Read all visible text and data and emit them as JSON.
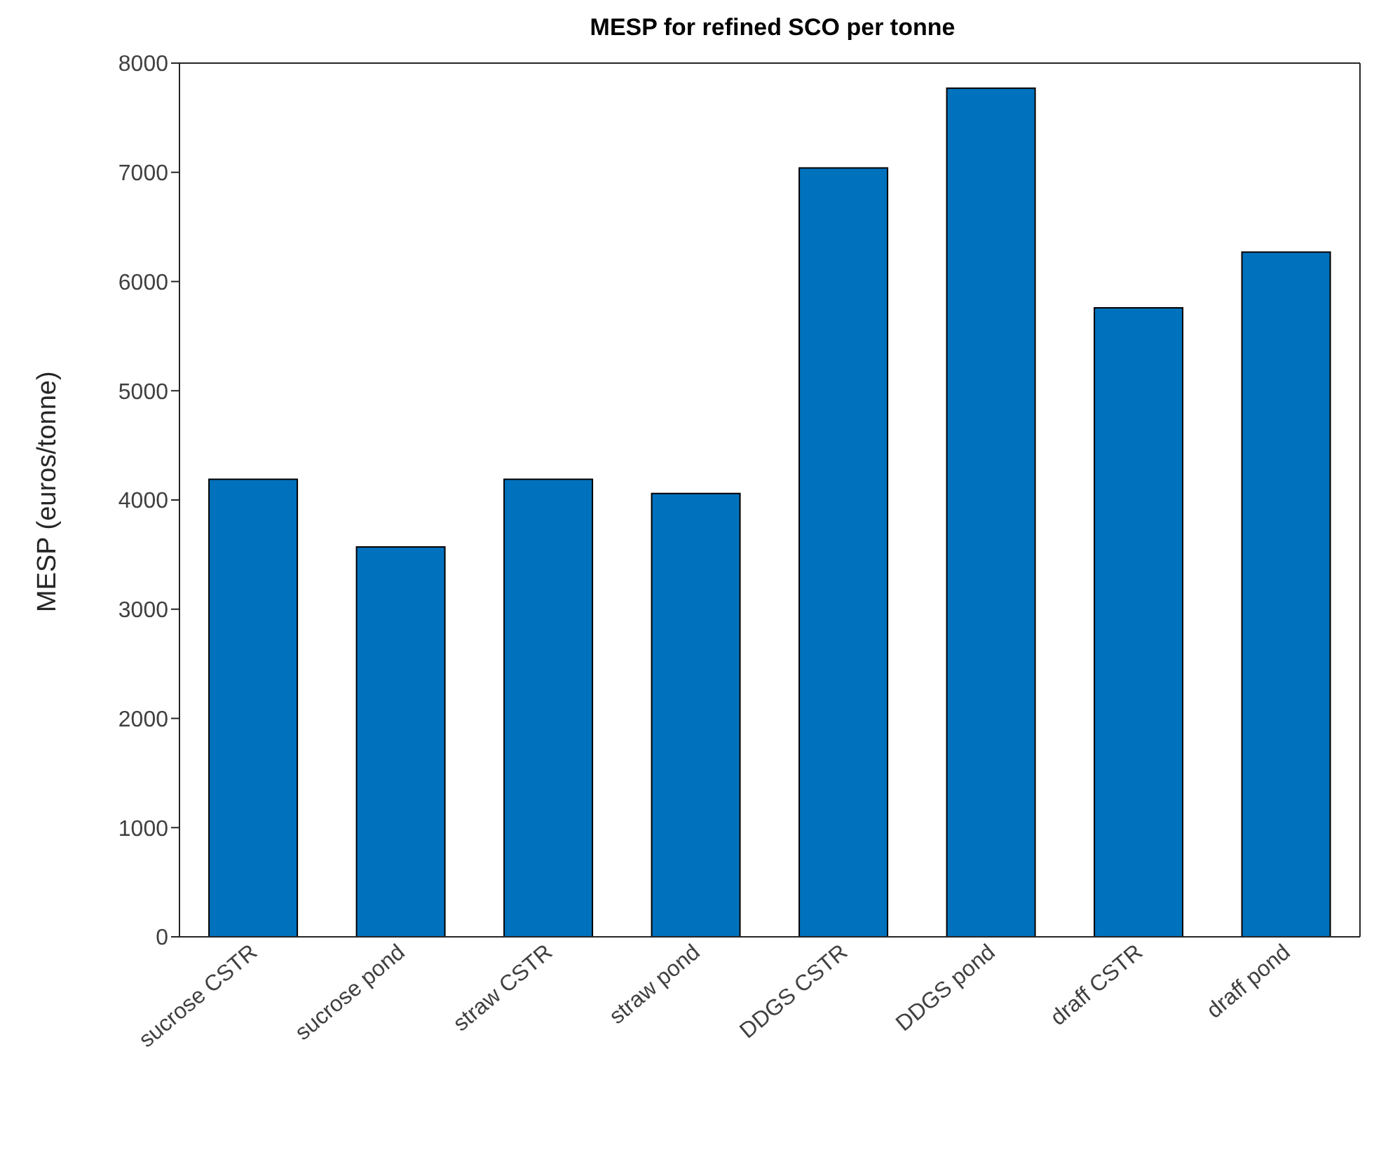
{
  "chart_data": {
    "type": "bar",
    "title": "MESP for refined SCO per tonne",
    "ylabel": "MESP (euros/tonne)",
    "categories": [
      "sucrose CSTR",
      "sucrose pond",
      "straw CSTR",
      "straw pond",
      "DDGS CSTR",
      "DDGS pond",
      "draff CSTR",
      "draff pond"
    ],
    "values": [
      4190,
      3570,
      4190,
      4060,
      7040,
      7770,
      5760,
      6270
    ],
    "color": "#0072bd",
    "ylim": [
      0,
      8000
    ],
    "yticks": [
      0,
      1000,
      2000,
      3000,
      4000,
      5000,
      6000,
      7000,
      8000
    ],
    "grid": false,
    "legend": false
  }
}
